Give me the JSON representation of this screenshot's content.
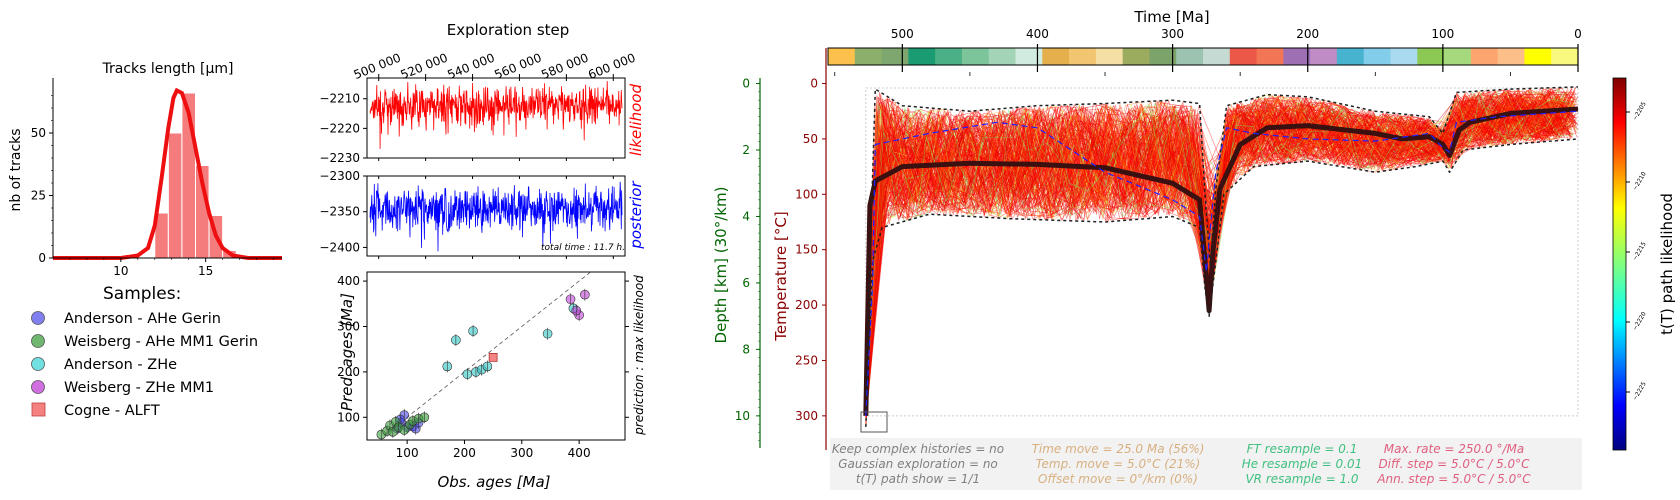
{
  "chart_data": [
    {
      "type": "bar",
      "title": "Tracks length [µm]",
      "ylabel": "nb of tracks",
      "xlim": [
        6,
        19.5
      ],
      "ylim": [
        0,
        72
      ],
      "xticks": [
        10,
        15
      ],
      "yticks": [
        0,
        25,
        50
      ],
      "bin_width": 0.8,
      "bins": [
        {
          "x": 12.0,
          "value": 18
        },
        {
          "x": 12.8,
          "value": 50
        },
        {
          "x": 13.6,
          "value": 66
        },
        {
          "x": 14.4,
          "value": 37
        },
        {
          "x": 15.2,
          "value": 17
        },
        {
          "x": 16.0,
          "value": 3
        }
      ],
      "density_curve": [
        [
          6,
          0
        ],
        [
          10,
          0
        ],
        [
          11,
          1
        ],
        [
          11.6,
          4
        ],
        [
          12,
          13
        ],
        [
          12.4,
          32
        ],
        [
          12.8,
          52
        ],
        [
          13.1,
          64
        ],
        [
          13.3,
          67
        ],
        [
          13.6,
          66
        ],
        [
          14,
          58
        ],
        [
          14.4,
          44
        ],
        [
          14.8,
          30
        ],
        [
          15.2,
          18
        ],
        [
          15.6,
          9
        ],
        [
          16,
          4
        ],
        [
          16.6,
          1
        ],
        [
          17.5,
          0
        ],
        [
          19.5,
          0
        ]
      ],
      "bar_color": "#f47c7c",
      "curve_color": "#ee1010"
    },
    {
      "type": "legend",
      "title": "Samples:",
      "items": [
        {
          "label": "Anderson - AHe Gerin",
          "color": "#8080f0",
          "marker": "circle"
        },
        {
          "label": "Weisberg - AHe MM1 Gerin",
          "color": "#70b870",
          "marker": "circle"
        },
        {
          "label": "Anderson - ZHe",
          "color": "#70e0e0",
          "marker": "circle"
        },
        {
          "label": "Weisberg - ZHe MM1",
          "color": "#d070e0",
          "marker": "circle"
        },
        {
          "label": "Cogne - ALFT",
          "color": "#f48080",
          "marker": "square"
        }
      ]
    },
    {
      "type": "line",
      "title": "Exploration step",
      "x_range": [
        495000,
        605000
      ],
      "xticks": [
        500000,
        520000,
        540000,
        560000,
        580000,
        600000
      ],
      "xtick_labels": [
        "500 000",
        "520 000",
        "540 000",
        "560 000",
        "580 000",
        "600 000"
      ],
      "series": [
        {
          "name": "likelihood",
          "color": "#ff0000",
          "ylim": [
            -2230,
            -2203
          ],
          "yticks": [
            -2230,
            -2220,
            -2210
          ],
          "ytick_labels": [
            "−2230",
            "−2220",
            "−2210"
          ],
          "mean": -2212,
          "spread": 4
        },
        {
          "name": "posterior",
          "color": "#0000ff",
          "ylim": [
            -2412,
            -2300
          ],
          "yticks": [
            -2400,
            -2350,
            -2300
          ],
          "ytick_labels": [
            "−2400",
            "−2350",
            "−2300"
          ],
          "mean": -2345,
          "spread": 18
        }
      ],
      "annotation": "total time : 11.7 h."
    },
    {
      "type": "scatter",
      "xlabel": "Obs. ages [Ma]",
      "ylabel": "Pred. ages [Ma]",
      "right_label": "prediction : max likelihood",
      "xlim": [
        30,
        480
      ],
      "ylim": [
        50,
        420
      ],
      "xticks": [
        100,
        200,
        300,
        400
      ],
      "yticks": [
        100,
        200,
        300,
        400
      ],
      "series": [
        {
          "name": "Anderson - AHe Gerin",
          "color": "#4848e8",
          "points": [
            [
              83,
              75
            ],
            [
              90,
              88
            ],
            [
              95,
              105
            ],
            [
              100,
              78
            ],
            [
              110,
              80
            ],
            [
              115,
              75
            ],
            [
              120,
              88
            ],
            [
              88,
              95
            ]
          ]
        },
        {
          "name": "Weisberg - AHe MM1 Gerin",
          "color": "#3aa03a",
          "points": [
            [
              55,
              62
            ],
            [
              65,
              70
            ],
            [
              70,
              82
            ],
            [
              75,
              68
            ],
            [
              80,
              90
            ],
            [
              85,
              78
            ],
            [
              95,
              72
            ],
            [
              105,
              84
            ],
            [
              110,
              92
            ],
            [
              120,
              97
            ],
            [
              130,
              100
            ]
          ]
        },
        {
          "name": "Anderson - ZHe",
          "color": "#30c8c8",
          "points": [
            [
              170,
              212
            ],
            [
              185,
              270
            ],
            [
              205,
              195
            ],
            [
              215,
              290
            ],
            [
              220,
              200
            ],
            [
              230,
              205
            ],
            [
              240,
              212
            ],
            [
              345,
              284
            ],
            [
              390,
              340
            ]
          ]
        },
        {
          "name": "Weisberg - ZHe MM1",
          "color": "#c040d8",
          "points": [
            [
              385,
              360
            ],
            [
              400,
              325
            ],
            [
              410,
              370
            ],
            [
              395,
              335
            ]
          ]
        },
        {
          "name": "Cogne - ALFT",
          "color": "#f05050",
          "marker": "square",
          "points": [
            [
              250,
              232
            ]
          ]
        }
      ]
    },
    {
      "type": "line",
      "title": "Time [Ma]",
      "xlim": [
        555,
        0
      ],
      "xticks": [
        500,
        400,
        300,
        200,
        100,
        0
      ],
      "ylabel": "Temperature [°C]",
      "ylim": [
        320,
        -5
      ],
      "yticks": [
        0,
        50,
        100,
        150,
        200,
        250,
        300
      ],
      "depth_axis": {
        "label": "Depth [km] (30°/km)",
        "ticks": [
          0,
          2,
          4,
          6,
          8,
          10
        ]
      },
      "colorbar": {
        "label": "t(T) path likelihood",
        "ticks": [
          "−2205",
          "−2210",
          "−2215",
          "−2220",
          "−2225"
        ]
      },
      "timescale_colors": [
        "#fcc04c",
        "#8cb06c",
        "#7ea770",
        "#1a9b72",
        "#4bb085",
        "#7cc49a",
        "#a3d4b7",
        "#d1ebe1",
        "#e5b04b",
        "#f2c571",
        "#f6dfa5",
        "#9cac5f",
        "#7ca36a",
        "#9cc2b0",
        "#c5dad2",
        "#ec5847",
        "#f27556",
        "#9e6fb3",
        "#bf8cc6",
        "#47b3cf",
        "#82cdea",
        "#aadaf0",
        "#8cc954",
        "#a6d97e",
        "#fda56f",
        "#fdbf89",
        "#ffff00",
        "#f9f97f"
      ],
      "series": [
        {
          "name": "best path",
          "color": "#3a1010",
          "points": [
            [
              527,
              300
            ],
            [
              524,
              110
            ],
            [
              520,
              88
            ],
            [
              500,
              75
            ],
            [
              450,
              72
            ],
            [
              400,
              73
            ],
            [
              350,
              76
            ],
            [
              300,
              90
            ],
            [
              280,
              105
            ],
            [
              276,
              160
            ],
            [
              273,
              205
            ],
            [
              270,
              150
            ],
            [
              265,
              95
            ],
            [
              250,
              55
            ],
            [
              230,
              40
            ],
            [
              200,
              38
            ],
            [
              150,
              45
            ],
            [
              130,
              50
            ],
            [
              110,
              48
            ],
            [
              100,
              55
            ],
            [
              95,
              65
            ],
            [
              88,
              42
            ],
            [
              80,
              35
            ],
            [
              50,
              27
            ],
            [
              0,
              23
            ]
          ]
        },
        {
          "name": "upper envelope",
          "color": "#202020",
          "points": [
            [
              527,
              280
            ],
            [
              520,
              5
            ],
            [
              500,
              20
            ],
            [
              450,
              25
            ],
            [
              400,
              20
            ],
            [
              350,
              18
            ],
            [
              300,
              15
            ],
            [
              280,
              18
            ],
            [
              276,
              100
            ],
            [
              272,
              165
            ],
            [
              268,
              95
            ],
            [
              260,
              20
            ],
            [
              230,
              10
            ],
            [
              200,
              12
            ],
            [
              150,
              25
            ],
            [
              110,
              30
            ],
            [
              100,
              45
            ],
            [
              90,
              8
            ],
            [
              50,
              5
            ],
            [
              0,
              3
            ]
          ]
        },
        {
          "name": "lower envelope",
          "color": "#202020",
          "points": [
            [
              527,
              310
            ],
            [
              522,
              160
            ],
            [
              515,
              130
            ],
            [
              480,
              118
            ],
            [
              420,
              122
            ],
            [
              350,
              125
            ],
            [
              300,
              120
            ],
            [
              280,
              130
            ],
            [
              276,
              185
            ],
            [
              273,
              210
            ],
            [
              269,
              170
            ],
            [
              262,
              100
            ],
            [
              240,
              75
            ],
            [
              200,
              70
            ],
            [
              150,
              80
            ],
            [
              120,
              75
            ],
            [
              100,
              70
            ],
            [
              95,
              80
            ],
            [
              85,
              60
            ],
            [
              50,
              55
            ],
            [
              0,
              50
            ]
          ]
        },
        {
          "name": "dashed path",
          "color": "#2020ff",
          "points": [
            [
              527,
              300
            ],
            [
              522,
              180
            ],
            [
              520,
              55
            ],
            [
              480,
              45
            ],
            [
              430,
              35
            ],
            [
              400,
              40
            ],
            [
              350,
              80
            ],
            [
              300,
              105
            ],
            [
              280,
              120
            ],
            [
              275,
              170
            ],
            [
              272,
              130
            ],
            [
              268,
              80
            ],
            [
              260,
              40
            ],
            [
              240,
              45
            ],
            [
              200,
              50
            ],
            [
              150,
              52
            ],
            [
              110,
              45
            ],
            [
              100,
              58
            ],
            [
              95,
              62
            ],
            [
              90,
              35
            ],
            [
              60,
              30
            ],
            [
              0,
              25
            ]
          ]
        }
      ],
      "settings": [
        {
          "color": "#808080",
          "lines": [
            "Keep complex histories = no",
            "Gaussian exploration = no",
            "t(T) path show = 1/1"
          ]
        },
        {
          "color": "#d8b080",
          "lines": [
            "Time move = 25.0 Ma (56%)",
            "Temp. move = 5.0°C (21%)",
            "Offset move = 0°/km (0%)"
          ]
        },
        {
          "color": "#40c080",
          "lines": [
            "FT resample = 0.1",
            "He resample = 0.01",
            "VR resample = 1.0"
          ]
        },
        {
          "color": "#e06080",
          "lines": [
            "Max. rate = 250.0 °/Ma",
            "Diff. step = 5.0°C / 5.0°C",
            "Ann. step = 5.0°C / 5.0°C"
          ]
        }
      ]
    }
  ]
}
